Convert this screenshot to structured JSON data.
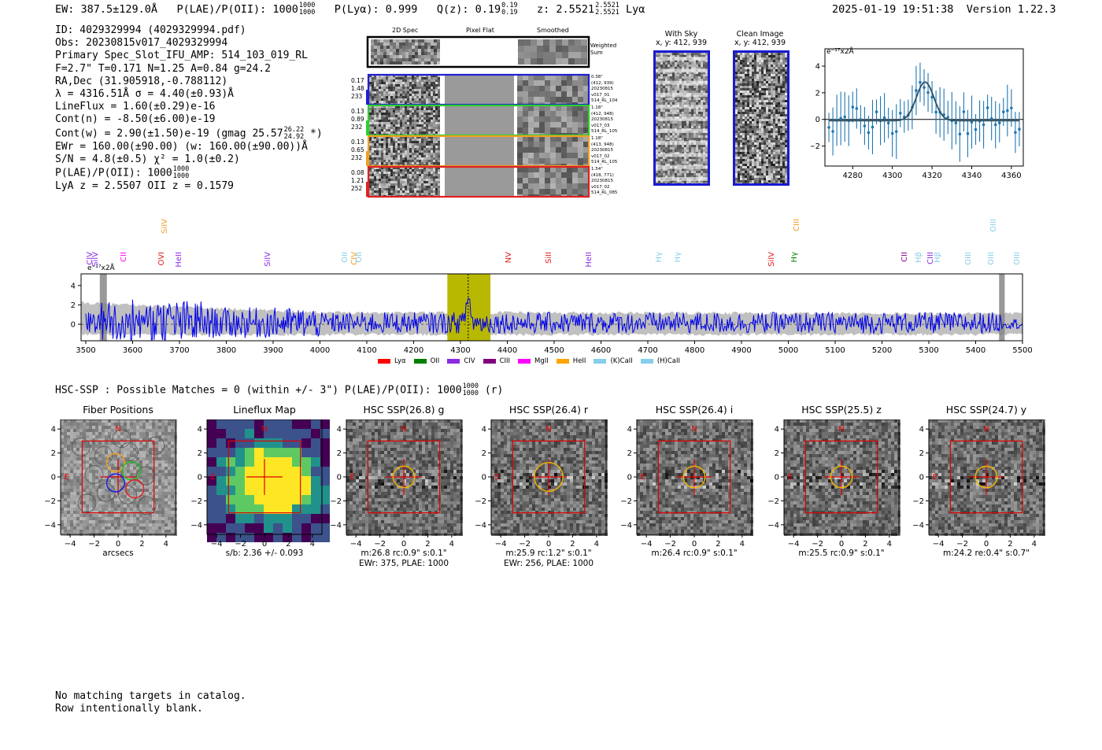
{
  "header": {
    "ew_text": "EW: 387.5±129.0Å",
    "plae_text": "P(LAE)/P(OII): 1000",
    "plae_hi": "1000",
    "plae_lo": "1000",
    "plya_text": "P(Lyα): 0.999",
    "qz_text": "Q(z): 0.19",
    "qz_hi": "0.19",
    "qz_lo": "0.19",
    "z_text": "z: 2.5521",
    "z_hi": "2.5521",
    "z_lo": "2.5521",
    "z_line": "Lyα",
    "datetime": "2025-01-19 19:51:38",
    "version": "Version 1.22.3"
  },
  "info": {
    "id": "ID: 4029329994 (4029329994.pdf)",
    "obs": "Obs: 20230815v017_4029329994",
    "primary": "Primary Spec_Slot_IFU_AMP: 514_103_019_RL",
    "fiber_params": "F=2.7\"  T=0.171  N=1.25  A=0.84  g=24.2",
    "radec": "RA,Dec (31.905918,-0.788112)",
    "lambda": "λ = 4316.51Å  σ = 4.40(±0.93)Å",
    "lineflux": "LineFlux = 1.60(±0.29)e-16",
    "contn": "Cont(n) = -8.50(±6.00)e-19",
    "contw": "Cont(w) = 2.90(±1.50)e-19 (gmag 25.57",
    "contw_hi": "26.22",
    "contw_lo": "24.92",
    "contw_end": "*)",
    "ewr": "EWr = 160.00(±90.00) (w: 160.00(±90.00))Å",
    "sn": "S/N = 4.8(±0.5)  χ² = 1.0(±0.2)",
    "plae": "P(LAE)/P(OII): 1000",
    "plae_hi": "1000",
    "plae_lo": "1000",
    "redshifts": "LyA z = 2.5507  OII z = 0.1579"
  },
  "cutouts": {
    "col_2d": "2D Spec",
    "col_flat": "Pixel Flat",
    "col_smooth": "Smoothed",
    "weighted_label": "Weighted Sum",
    "rows": [
      {
        "left": [
          "0.17",
          "1.48",
          "233"
        ],
        "right": [
          "0.38\"",
          "(412, 939)",
          "20230815",
          "v017_01",
          "514_RL_104"
        ],
        "color": "#1f1fd6"
      },
      {
        "left": [
          "0.13",
          "0.89",
          "232"
        ],
        "right": [
          "1.18\"",
          "(412, 948)",
          "20230815",
          "v017_03",
          "514_RL_105"
        ],
        "color": "#2ad12a"
      },
      {
        "left": [
          "0.13",
          "0.65",
          "232"
        ],
        "right": [
          "1.18\"",
          "(413, 948)",
          "20230815",
          "v017_02",
          "514_RL_105"
        ],
        "color": "#f0a020"
      },
      {
        "left": [
          "0.08",
          "1.21",
          "252"
        ],
        "right": [
          "1.54\"",
          "(418, 771)",
          "20230815",
          "v017_02",
          "514_RL_085"
        ],
        "color": "#e02020"
      }
    ]
  },
  "sky": {
    "with_sky": "With Sky",
    "with_sky_xy": "x, y: 412, 939",
    "clean": "Clean Image",
    "clean_xy": "x, y: 412, 939"
  },
  "zoom_plot": {
    "unit_label": "e⁻¹⁷x2Å",
    "x_ticks": [
      "4280",
      "4300",
      "4320",
      "4340",
      "4360"
    ],
    "y_ticks": [
      "4",
      "2",
      "0",
      "−2"
    ],
    "xlim": [
      4266,
      4366
    ],
    "ylim": [
      -3.5,
      5.3
    ],
    "gauss": {
      "mu": 4316.5,
      "sigma": 4.4,
      "amp": 2.9,
      "base": -0.1
    }
  },
  "spectrum": {
    "unit_label": "e⁻¹⁷x2Å",
    "x_ticks": [
      "3500",
      "3600",
      "3700",
      "3800",
      "3900",
      "4000",
      "4100",
      "4200",
      "4300",
      "4400",
      "4500",
      "4600",
      "4700",
      "4800",
      "4900",
      "5000",
      "5100",
      "5200",
      "5300",
      "5400",
      "5500"
    ],
    "y_ticks": [
      "4",
      "2",
      "0"
    ],
    "xlim": [
      3490,
      5500
    ],
    "ylim": [
      -1.7,
      5.2
    ],
    "highlight": [
      4272,
      4364
    ],
    "peak": 4316.5,
    "lines": [
      {
        "label": "CIV",
        "wave": 3510,
        "color": "#8a2be2",
        "tier": 1
      },
      {
        "label": "SiIV",
        "wave": 3522,
        "color": "#8a2be2",
        "tier": 1
      },
      {
        "label": "CII",
        "wave": 3583,
        "color": "#ff00ff",
        "tier": 1
      },
      {
        "label": "SiIV",
        "wave": 3670,
        "color": "#f0a020",
        "tier": 0
      },
      {
        "label": "OVI",
        "wave": 3663,
        "color": "#e02020",
        "tier": 1
      },
      {
        "label": "HeII",
        "wave": 3700,
        "color": "#8a2be2",
        "tier": 1
      },
      {
        "label": "SiIV",
        "wave": 3890,
        "color": "#8a2be2",
        "tier": 1
      },
      {
        "label": "OII",
        "wave": 4055,
        "color": "#87ceeb",
        "tier": 1
      },
      {
        "label": "CIV",
        "wave": 4075,
        "color": "#f0a020",
        "tier": 1
      },
      {
        "label": "OII",
        "wave": 4085,
        "color": "#87ceeb",
        "tier": 1
      },
      {
        "label": "NV",
        "wave": 4405,
        "color": "#e02020",
        "tier": 1
      },
      {
        "label": "SiII",
        "wave": 4490,
        "color": "#e02020",
        "tier": 1
      },
      {
        "label": "HeII",
        "wave": 4575,
        "color": "#8a2be2",
        "tier": 1
      },
      {
        "label": "Hγ",
        "wave": 4725,
        "color": "#87ceeb",
        "tier": 1
      },
      {
        "label": "Hγ",
        "wave": 4765,
        "color": "#87ceeb",
        "tier": 1
      },
      {
        "label": "SiIV",
        "wave": 4965,
        "color": "#e02020",
        "tier": 1
      },
      {
        "label": "CIII",
        "wave": 5020,
        "color": "#f0a020",
        "tier": 0
      },
      {
        "label": "Hγ",
        "wave": 5015,
        "color": "#008000",
        "tier": 1
      },
      {
        "label": "CII",
        "wave": 5250,
        "color": "#800080",
        "tier": 1
      },
      {
        "label": "Hβ",
        "wave": 5280,
        "color": "#87ceeb",
        "tier": 1
      },
      {
        "label": "CIII",
        "wave": 5305,
        "color": "#8a2be2",
        "tier": 1
      },
      {
        "label": "Hβ",
        "wave": 5320,
        "color": "#87ceeb",
        "tier": 1
      },
      {
        "label": "OIII",
        "wave": 5385,
        "color": "#87ceeb",
        "tier": 1
      },
      {
        "label": "OIII",
        "wave": 5440,
        "color": "#87ceeb",
        "tier": 0
      },
      {
        "label": "OIII",
        "wave": 5435,
        "color": "#87ceeb",
        "tier": 1
      },
      {
        "label": "OIII",
        "wave": 5490,
        "color": "#87ceeb",
        "tier": 1
      }
    ],
    "legend": [
      {
        "label": "Lyα",
        "color": "#ff0000"
      },
      {
        "label": "OII",
        "color": "#008000"
      },
      {
        "label": "CIV",
        "color": "#8a2be2"
      },
      {
        "label": "CIII",
        "color": "#800080"
      },
      {
        "label": "MgII",
        "color": "#ff00ff"
      },
      {
        "label": "HeII",
        "color": "#ffa500"
      },
      {
        "label": "(K)CaII",
        "color": "#87ceeb"
      },
      {
        "label": "(H)CaII",
        "color": "#87ceeb"
      }
    ]
  },
  "hsc": {
    "summary": "HSC-SSP : Possible Matches = 0 (within +/- 3\")  P(LAE)/P(OII): 1000",
    "summary_hi": "1000",
    "summary_lo": "1000",
    "summary_end": "(r)",
    "ticks": [
      "−4",
      "−2",
      "0",
      "2",
      "4"
    ],
    "panels": [
      {
        "title": "Fiber Positions",
        "caption": [
          "arcsecs"
        ]
      },
      {
        "title": "Lineflux Map",
        "caption": [
          "s/b: 2.36 +/- 0.093"
        ]
      },
      {
        "title": "HSC SSP(26.8) g",
        "caption": [
          "m:26.8 rc:0.9\"  s:0.1\"",
          "EWr: 375, PLAE: 1000"
        ]
      },
      {
        "title": "HSC SSP(26.4) r",
        "caption": [
          "m:25.9 rc:1.2\"  s:0.1\"",
          "EWr: 256, PLAE: 1000"
        ]
      },
      {
        "title": "HSC SSP(26.4) i",
        "caption": [
          "m:26.4 rc:0.9\"  s:0.1\""
        ]
      },
      {
        "title": "HSC SSP(25.5) z",
        "caption": [
          "m:25.5 rc:0.9\"  s:0.1\""
        ]
      },
      {
        "title": "HSC SSP(24.7) y",
        "caption": [
          "m:24.2  re:0.4\"  s:0.7\""
        ]
      }
    ],
    "north": "N",
    "east": "E"
  },
  "footer": {
    "line1": "No matching targets in catalog.",
    "line2": "Row intentionally blank."
  }
}
